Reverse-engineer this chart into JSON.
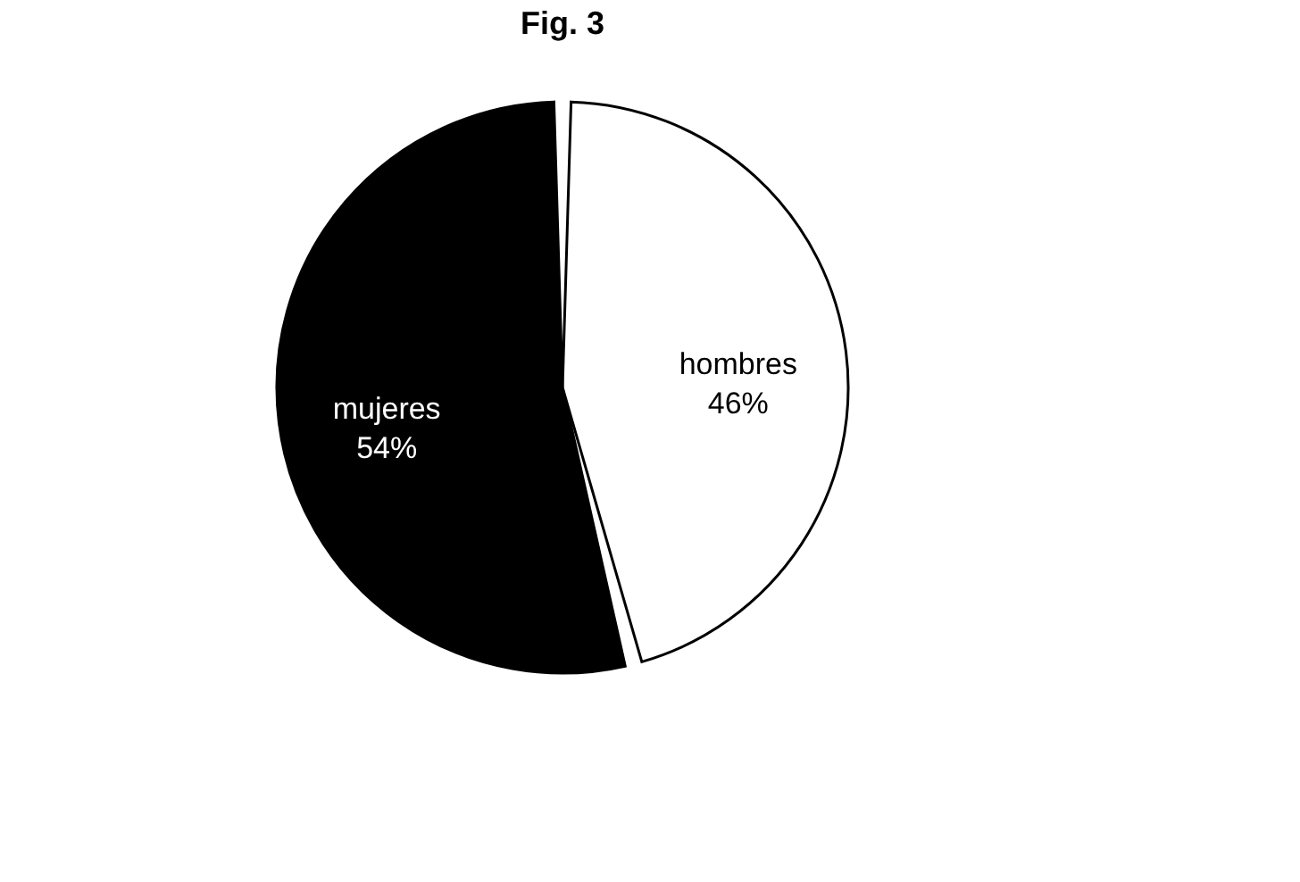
{
  "chart_data": {
    "type": "pie",
    "title": "Fig. 3",
    "categories": [
      "hombres",
      "mujeres"
    ],
    "values": [
      46,
      54
    ],
    "colors": [
      "#ffffff",
      "#000000"
    ],
    "value_labels": [
      "46%",
      "54%"
    ],
    "legend": false
  }
}
